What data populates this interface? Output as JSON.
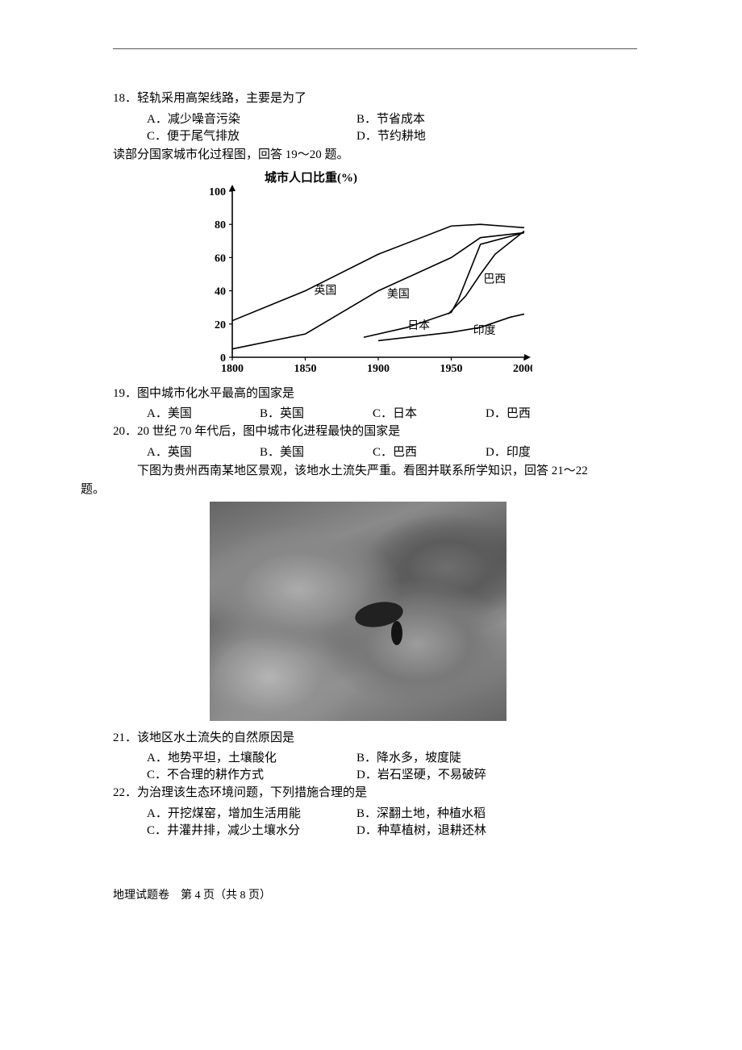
{
  "q18": {
    "text": "18．轻轨采用高架线路，主要是为了",
    "A": "A．减少噪音污染",
    "B": "B．节省成本",
    "C": "C．便于尾气排放",
    "D": "D．节约耕地"
  },
  "intro19": "读部分国家城市化过程图，回答 19～20 题。",
  "chart": {
    "type": "line",
    "title": "城市人口比重(%)",
    "title_fontsize": 15,
    "xlim": [
      1800,
      2000
    ],
    "xticks": [
      1800,
      1850,
      1900,
      1950,
      2000
    ],
    "ylim": [
      0,
      100
    ],
    "yticks": [
      0,
      20,
      40,
      60,
      80,
      100
    ],
    "axis_color": "#000000",
    "line_color": "#000000",
    "line_width": 1.6,
    "label_fontsize": 14,
    "series": {
      "uk": {
        "label": "英国",
        "points": [
          [
            1800,
            22
          ],
          [
            1850,
            40
          ],
          [
            1900,
            62
          ],
          [
            1950,
            79
          ],
          [
            1970,
            80
          ],
          [
            2000,
            78
          ]
        ]
      },
      "us": {
        "label": "美国",
        "points": [
          [
            1800,
            5
          ],
          [
            1850,
            14
          ],
          [
            1900,
            40
          ],
          [
            1950,
            60
          ],
          [
            1970,
            72
          ],
          [
            2000,
            75
          ]
        ]
      },
      "japan": {
        "label": "日本",
        "points": [
          [
            1890,
            12
          ],
          [
            1920,
            18
          ],
          [
            1950,
            27
          ],
          [
            1955,
            35
          ],
          [
            1970,
            68
          ],
          [
            2000,
            75
          ]
        ]
      },
      "brazil": {
        "label": "巴西",
        "points": [
          [
            1948,
            26
          ],
          [
            1960,
            37
          ],
          [
            1970,
            50
          ],
          [
            1980,
            62
          ],
          [
            2000,
            76
          ]
        ]
      },
      "india": {
        "label": "印度",
        "points": [
          [
            1900,
            10
          ],
          [
            1950,
            15
          ],
          [
            1970,
            18
          ],
          [
            1990,
            24
          ],
          [
            2000,
            26
          ]
        ]
      }
    },
    "label_positions": {
      "uk": [
        1856,
        38
      ],
      "us": [
        1906,
        36
      ],
      "japan": [
        1920,
        17
      ],
      "brazil": [
        1972,
        45
      ],
      "india": [
        1965,
        14
      ]
    }
  },
  "q19": {
    "text": "19．图中城市化水平最高的国家是",
    "A": "A．美国",
    "B": "B．英国",
    "C": "C．日本",
    "D": "D．巴西"
  },
  "q20": {
    "text": "20．20 世纪 70 年代后，图中城市化进程最快的国家是",
    "A": "A．英国",
    "B": "B．美国",
    "C": "C．巴西",
    "D": "D．印度"
  },
  "intro21": "下图为贵州西南某地区景观，该地水土流失严重。看图并联系所学知识，回答 21～22",
  "intro21b": "题。",
  "q21": {
    "text": "21．该地区水土流失的自然原因是",
    "A": "A．地势平坦，土壤酸化",
    "B": "B．降水多，坡度陡",
    "C": "C．不合理的耕作方式",
    "D": "D．岩石坚硬，不易破碎"
  },
  "q22": {
    "text": "22．为治理该生态环境问题，下列措施合理的是",
    "A": "A．开挖煤窑，增加生活用能",
    "B": "B．深翻土地，种植水稻",
    "C": "C．井灌井排，减少土壤水分",
    "D": "D．种草植树，退耕还林"
  },
  "footer": "地理试题卷　第 4 页（共 8 页）"
}
